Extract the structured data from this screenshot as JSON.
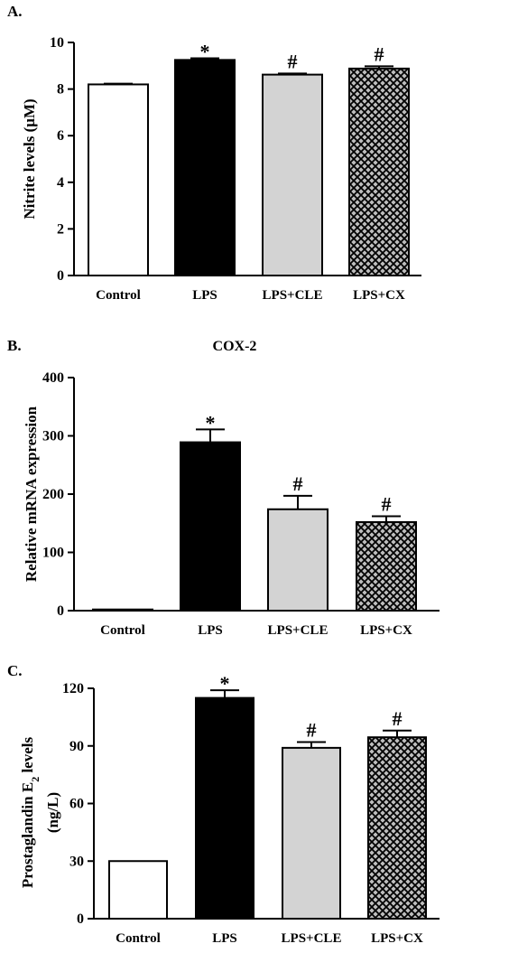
{
  "chart_data": [
    {
      "type": "bar",
      "panel_label": "A.",
      "title": "",
      "ylabel": "Nitrite levels (μM)",
      "categories": [
        "Control",
        "LPS",
        "LPS+CLE",
        "LPS+CX"
      ],
      "values": [
        8.2,
        9.25,
        8.62,
        8.88
      ],
      "errors": [
        0.03,
        0.07,
        0.05,
        0.1
      ],
      "marks": [
        "",
        "*",
        "#",
        "#"
      ],
      "ylim": [
        0,
        10
      ],
      "yticks": [
        "0",
        "2",
        "4",
        "6",
        "8",
        "10"
      ],
      "fills": [
        "white",
        "black",
        "lightgray",
        "crosshatch"
      ]
    },
    {
      "type": "bar",
      "panel_label": "B.",
      "title": "COX-2",
      "ylabel": "Relative mRNA expression",
      "categories": [
        "Control",
        "LPS",
        "LPS+CLE",
        "LPS+CX"
      ],
      "values": [
        2,
        289,
        174,
        152
      ],
      "errors": [
        0,
        22,
        23,
        10
      ],
      "marks": [
        "",
        "*",
        "#",
        "#"
      ],
      "ylim": [
        0,
        400
      ],
      "yticks": [
        "0",
        "100",
        "200",
        "300",
        "400"
      ],
      "fills": [
        "white",
        "black",
        "lightgray",
        "crosshatch"
      ]
    },
    {
      "type": "bar",
      "panel_label": "C.",
      "title": "",
      "ylabel_line1": "Prostaglandin E",
      "ylabel_sub": "2",
      "ylabel_line1_end": " levels",
      "ylabel_line2": "(ng/L)",
      "categories": [
        "Control",
        "LPS",
        "LPS+CLE",
        "LPS+CX"
      ],
      "values": [
        30,
        115,
        89,
        94.5
      ],
      "errors": [
        0,
        4,
        3,
        3.5
      ],
      "marks": [
        "",
        "*",
        "#",
        "#"
      ],
      "ylim": [
        0,
        120
      ],
      "yticks": [
        "0",
        "30",
        "60",
        "90",
        "120"
      ],
      "fills": [
        "white",
        "black",
        "lightgray",
        "crosshatch"
      ]
    }
  ],
  "colors": {
    "black": "#000000",
    "lightgray": "#d3d3d3",
    "hatch_bg": "#bdbdbd",
    "hatch_line": "#000000"
  }
}
